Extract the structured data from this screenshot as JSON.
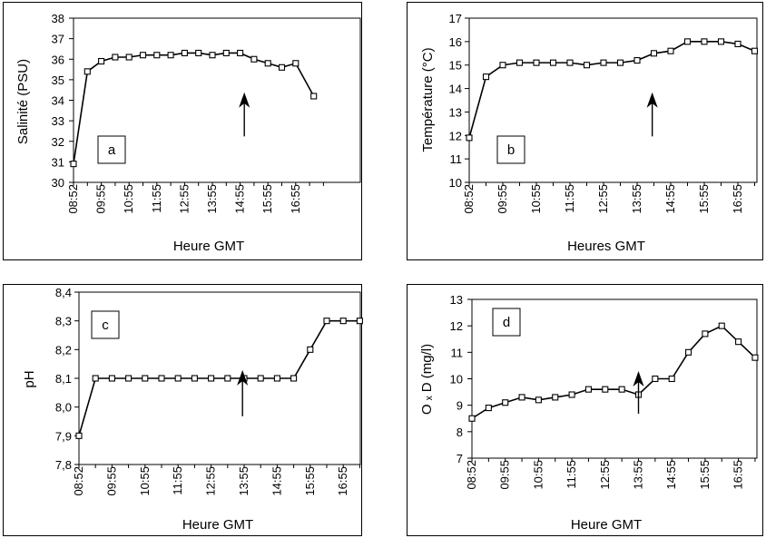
{
  "chart_data": [
    {
      "type": "line",
      "panel_label": "a",
      "ylabel": "Salinité (PSU)",
      "xlabel": "Heure GMT",
      "x_tick_labels": [
        "08:52",
        "09:55",
        "10:55",
        "11:55",
        "12:55",
        "13:55",
        "14:55",
        "15:55",
        "16:55"
      ],
      "y_tick_labels": [
        "30",
        "31",
        "32",
        "33",
        "34",
        "35",
        "36",
        "37",
        "38"
      ],
      "ylim": [
        30,
        38
      ],
      "arrow_at_x": 12.3,
      "x": [
        0,
        1,
        2,
        3,
        4,
        5,
        6,
        7,
        8,
        9,
        10,
        11,
        12,
        13,
        14,
        15,
        16
      ],
      "values": [
        30.9,
        35.4,
        35.9,
        36.1,
        36.1,
        36.2,
        36.2,
        36.2,
        36.3,
        36.3,
        36.2,
        36.3,
        36.3,
        36.0,
        35.8,
        35.6,
        35.8
      ],
      "extra_point": {
        "x": 17.3,
        "y": 34.2
      }
    },
    {
      "type": "line",
      "panel_label": "b",
      "ylabel": "Température (°C)",
      "xlabel": "Heures GMT",
      "x_tick_labels": [
        "08:52",
        "09:55",
        "10:55",
        "11:55",
        "12:55",
        "13:55",
        "14:55",
        "15:55",
        "16:55"
      ],
      "y_tick_labels": [
        "10",
        "11",
        "12",
        "13",
        "14",
        "15",
        "16",
        "17"
      ],
      "ylim": [
        10,
        17
      ],
      "arrow_at_x": 10.9,
      "x": [
        0,
        1,
        2,
        3,
        4,
        5,
        6,
        7,
        8,
        9,
        10,
        11,
        12,
        13,
        14,
        15,
        16,
        17
      ],
      "values": [
        11.9,
        14.5,
        15.0,
        15.1,
        15.1,
        15.1,
        15.1,
        15.0,
        15.1,
        15.1,
        15.2,
        15.5,
        15.6,
        16.0,
        16.0,
        16.0,
        15.9,
        15.6
      ]
    },
    {
      "type": "line",
      "panel_label": "c",
      "ylabel": "pH",
      "xlabel": "Heure GMT",
      "x_tick_labels": [
        "08:52",
        "09:55",
        "10:55",
        "11:55",
        "12:55",
        "13:55",
        "14:55",
        "15:55",
        "16:55"
      ],
      "y_tick_labels": [
        "7,8",
        "7,9",
        "8,0",
        "8,1",
        "8,2",
        "8,3",
        "8,4"
      ],
      "ylim": [
        7.8,
        8.4
      ],
      "arrow_at_x": 9.9,
      "x": [
        0,
        1,
        2,
        3,
        4,
        5,
        6,
        7,
        8,
        9,
        10,
        11,
        12,
        13,
        14,
        15,
        16,
        17
      ],
      "values": [
        7.9,
        8.1,
        8.1,
        8.1,
        8.1,
        8.1,
        8.1,
        8.1,
        8.1,
        8.1,
        8.1,
        8.1,
        8.1,
        8.1,
        8.2,
        8.3,
        8.3,
        8.3
      ]
    },
    {
      "type": "line",
      "panel_label": "d",
      "ylabel": "O ₓ D (mg/l)",
      "xlabel": "Heure GMT",
      "x_tick_labels": [
        "08:52",
        "09:55",
        "10:55",
        "11:55",
        "12:55",
        "13:55",
        "14:55",
        "15:55",
        "16:55"
      ],
      "y_tick_labels": [
        "7",
        "8",
        "9",
        "10",
        "11",
        "12",
        "13"
      ],
      "ylim": [
        7,
        13
      ],
      "arrow_at_x": 10.0,
      "x": [
        0,
        1,
        2,
        3,
        4,
        5,
        6,
        7,
        8,
        9,
        10,
        11,
        12,
        13,
        14,
        15,
        16,
        17
      ],
      "values": [
        8.5,
        8.9,
        9.1,
        9.3,
        9.2,
        9.3,
        9.4,
        9.6,
        9.6,
        9.6,
        9.4,
        10.0,
        10.0,
        11.0,
        11.7,
        12.0,
        11.4,
        10.8
      ]
    }
  ]
}
